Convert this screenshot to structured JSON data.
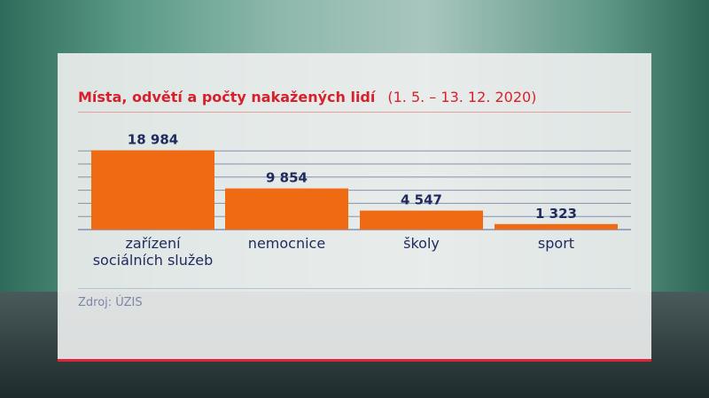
{
  "title": "Místa, odvětí a počty nakažených lidí",
  "date_range": "(1. 5. – 13. 12. 2020)",
  "source": "Zdroj: ÚZIS",
  "colors": {
    "bar": "#ef6a12",
    "title": "#d8202c",
    "text": "#1f2a5e",
    "grid": "#6f7aa0"
  },
  "chart_data": {
    "type": "bar",
    "title": "Místa, odvětí a počty nakažených lidí",
    "categories": [
      "zařízení sociálních služeb",
      "nemocnice",
      "školy",
      "sport"
    ],
    "category_lines": [
      [
        "zařízení",
        "sociálních služeb"
      ],
      [
        "nemocnice"
      ],
      [
        "školy"
      ],
      [
        "sport"
      ]
    ],
    "values": [
      18984,
      9854,
      4547,
      1323
    ],
    "data_labels": [
      "18 984",
      "9 854",
      "4 547",
      "1 323"
    ],
    "ylim": [
      0,
      19000
    ],
    "grid": true
  }
}
